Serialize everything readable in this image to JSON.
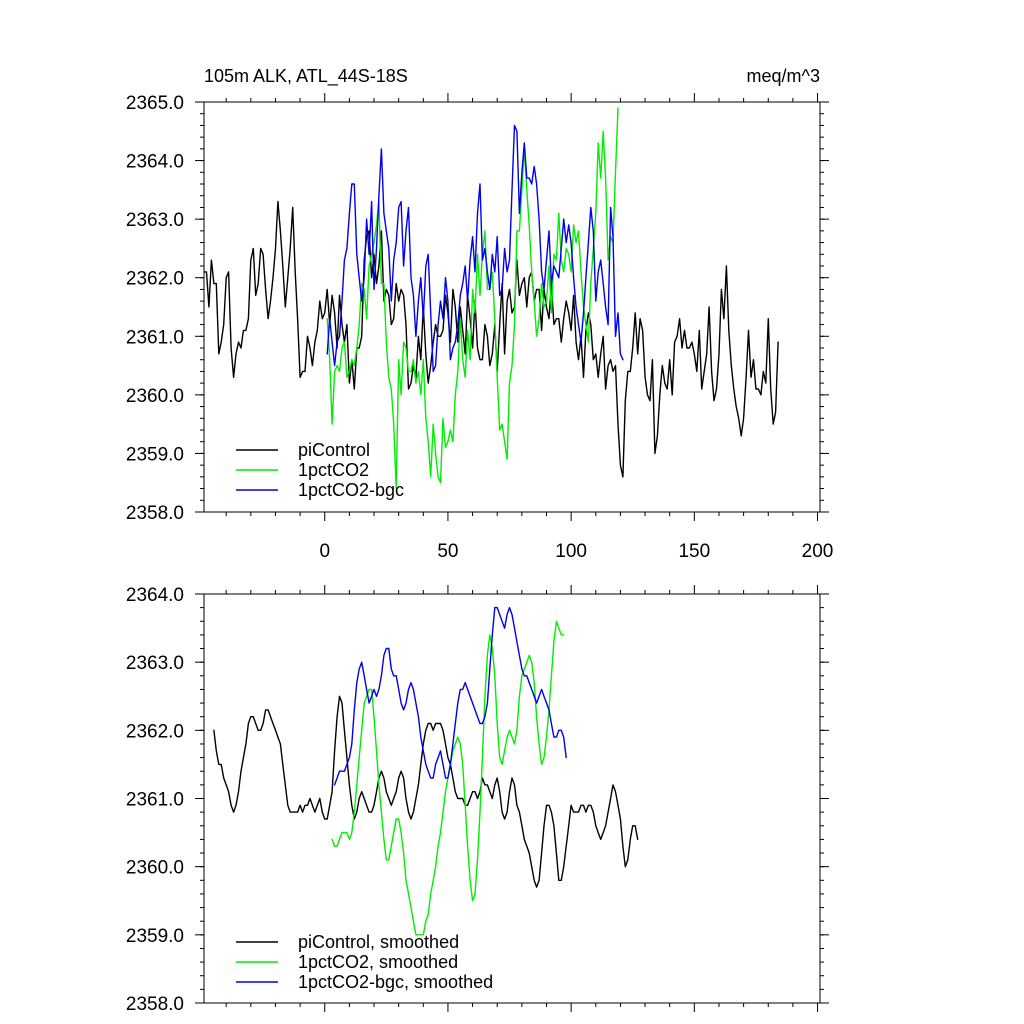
{
  "chart_data": [
    {
      "type": "line",
      "title": "105m ALK, ATL_44S-18S",
      "units": "meq/m^3",
      "xlim": [
        -49,
        201
      ],
      "ylim": [
        2358.0,
        2365.0
      ],
      "yticks": [
        2358.0,
        2359.0,
        2360.0,
        2361.0,
        2362.0,
        2363.0,
        2364.0,
        2365.0
      ],
      "ytick_labels": [
        "2358.0",
        "2359.0",
        "2360.0",
        "2361.0",
        "2362.0",
        "2363.0",
        "2364.0",
        "2365.0"
      ],
      "xticks": [
        0,
        50,
        100,
        150,
        200
      ],
      "xtick_labels": [
        "0",
        "50",
        "100",
        "150",
        "200"
      ],
      "legend_position": "bottom-left",
      "series": [
        {
          "name": "piControl",
          "color": "#000000",
          "x_start": -49,
          "values": [
            2362.1,
            2362.1,
            2361.5,
            2362.3,
            2361.9,
            2361.9,
            2360.7,
            2360.9,
            2361.2,
            2362.0,
            2362.1,
            2360.8,
            2360.3,
            2360.7,
            2360.9,
            2360.8,
            2361.1,
            2361.1,
            2361.3,
            2362.3,
            2362.5,
            2361.7,
            2361.9,
            2362.5,
            2362.4,
            2361.8,
            2361.3,
            2361.6,
            2362.0,
            2362.5,
            2363.3,
            2362.8,
            2362.2,
            2361.5,
            2362.0,
            2362.5,
            2363.2,
            2362.1,
            2361.3,
            2360.3,
            2360.4,
            2360.4,
            2361.0,
            2360.8,
            2360.5,
            2360.9,
            2361.1,
            2361.6,
            2361.3,
            2361.4,
            2361.8,
            2361.2,
            2361.7,
            2361.4,
            2360.8,
            2361.7,
            2361.2,
            2360.9,
            2361.2,
            2360.2,
            2360.6,
            2360.1,
            2360.8,
            2360.8,
            2361.0,
            2362.3,
            2362.7,
            2362.8,
            2362.0,
            2362.4,
            2361.9,
            2362.2,
            2362.8,
            2361.6,
            2361.8,
            2361.7,
            2361.2,
            2361.3,
            2361.9,
            2361.6,
            2361.8,
            2361.7,
            2361.2,
            2360.1,
            2360.2,
            2360.5,
            2360.3,
            2361.0,
            2360.6,
            2361.5,
            2360.7,
            2360.2,
            2360.5,
            2360.9,
            2361.2,
            2361.0,
            2361.0,
            2361.1,
            2361.7,
            2361.4,
            2360.9,
            2361.8,
            2361.5,
            2360.9,
            2361.5,
            2361.1,
            2360.7,
            2361.7,
            2361.3,
            2360.8,
            2361.6,
            2360.8,
            2360.6,
            2360.6,
            2361.2,
            2361.0,
            2360.5,
            2360.7,
            2361.2,
            2360.4,
            2361.2,
            2361.9,
            2360.7,
            2361.6,
            2361.8,
            2361.4,
            2361.5,
            2362.3,
            2361.7,
            2361.9,
            2362.0,
            2361.5,
            2362.0,
            2362.1,
            2361.6,
            2361.8,
            2361.8,
            2361.1,
            2361.8,
            2361.5,
            2361.3,
            2361.9,
            2361.2,
            2361.3,
            2361.3,
            2360.9,
            2361.3,
            2361.6,
            2361.4,
            2361.1,
            2361.7,
            2360.9,
            2360.6,
            2361.0,
            2360.3,
            2361.1,
            2361.4,
            2361.2,
            2360.6,
            2360.7,
            2360.3,
            2360.7,
            2361.0,
            2360.1,
            2360.5,
            2360.6,
            2360.4,
            2360.5,
            2359.5,
            2358.8,
            2358.6,
            2359.9,
            2360.4,
            2360.4,
            2360.8,
            2361.4,
            2360.7,
            2361.3,
            2361.1,
            2360.3,
            2360.0,
            2359.9,
            2360.6,
            2359.0,
            2359.3,
            2360.0,
            2360.5,
            2360.2,
            2360.1,
            2360.6,
            2360.0,
            2360.9,
            2361.0,
            2361.3,
            2360.8,
            2361.1,
            2360.8,
            2360.8,
            2360.9,
            2360.7,
            2360.4,
            2361.1,
            2360.1,
            2360.4,
            2360.7,
            2361.5,
            2360.4,
            2359.9,
            2360.1,
            2360.7,
            2361.8,
            2361.3,
            2362.2,
            2361.1,
            2360.5,
            2360.1,
            2359.8,
            2359.6,
            2359.3,
            2359.6,
            2360.3,
            2361.1,
            2360.3,
            2360.6,
            2360.1,
            2360.1,
            2360.0,
            2360.4,
            2360.2,
            2361.3,
            2360.1,
            2359.5,
            2359.7,
            2360.9
          ]
        },
        {
          "name": "1pctCO2",
          "color": "#00ee00",
          "x_start": 1,
          "values": [
            2361.3,
            2360.6,
            2359.5,
            2360.4,
            2360.5,
            2360.4,
            2360.8,
            2360.9,
            2360.3,
            2360.4,
            2360.6,
            2360.5,
            2360.8,
            2361.2,
            2361.9,
            2361.8,
            2361.3,
            2362.2,
            2362.4,
            2362.6,
            2362.9,
            2363.3,
            2361.9,
            2361.9,
            2360.9,
            2360.3,
            2360.1,
            2359.5,
            2358.4,
            2360.6,
            2360.0,
            2360.9,
            2360.8,
            2360.4,
            2360.4,
            2360.6,
            2360.2,
            2360.4,
            2360.0,
            2360.6,
            2359.6,
            2359.2,
            2358.6,
            2359.5,
            2359.0,
            2358.6,
            2358.5,
            2359.6,
            2359.1,
            2359.2,
            2359.4,
            2359.2,
            2360.0,
            2360.4,
            2361.3,
            2360.6,
            2360.3,
            2361.1,
            2360.6,
            2361.8,
            2361.4,
            2362.4,
            2361.7,
            2362.4,
            2362.8,
            2361.8,
            2361.8,
            2362.1,
            2361.3,
            2360.3,
            2359.4,
            2359.5,
            2359.2,
            2358.9,
            2360.2,
            2360.5,
            2361.2,
            2362.8,
            2362.8,
            2363.5,
            2364.2,
            2363.5,
            2362.9,
            2362.1,
            2361.6,
            2361.0,
            2361.3,
            2361.9,
            2361.5,
            2361.6,
            2362.2,
            2361.4,
            2362.4,
            2362.3,
            2363.1,
            2362.3,
            2362.1,
            2362.5,
            2362.4,
            2362.1,
            2362.9,
            2362.6,
            2362.8,
            2362.1,
            2361.5,
            2361.2,
            2360.9,
            2361.9,
            2362.5,
            2363.1,
            2364.3,
            2363.7,
            2364.5,
            2363.7,
            2362.3,
            2362.7,
            2362.6,
            2363.8,
            2364.9
          ]
        },
        {
          "name": "1pctCO2-bgc",
          "color": "#0000ee",
          "x_start": 1,
          "values": [
            2360.7,
            2361.3,
            2360.9,
            2360.5,
            2360.9,
            2361.0,
            2361.6,
            2362.3,
            2362.5,
            2363.1,
            2363.6,
            2363.6,
            2362.4,
            2362.0,
            2361.6,
            2362.0,
            2363.0,
            2362.4,
            2363.3,
            2361.8,
            2362.5,
            2363.4,
            2364.2,
            2363.1,
            2362.8,
            2362.5,
            2361.6,
            2362.3,
            2362.6,
            2363.2,
            2363.3,
            2362.2,
            2362.8,
            2363.2,
            2362.0,
            2361.7,
            2361.0,
            2361.6,
            2362.0,
            2361.3,
            2362.2,
            2362.4,
            2361.4,
            2360.4,
            2360.5,
            2361.2,
            2361.6,
            2361.3,
            2362.0,
            2361.6,
            2360.6,
            2360.8,
            2360.9,
            2361.2,
            2361.7,
            2361.9,
            2362.2,
            2361.6,
            2362.3,
            2362.7,
            2362.1,
            2363.1,
            2363.6,
            2362.3,
            2362.5,
            2362.1,
            2361.8,
            2362.4,
            2362.1,
            2362.7,
            2361.7,
            2361.8,
            2362.5,
            2362.1,
            2362.3,
            2363.5,
            2364.6,
            2364.5,
            2363.1,
            2363.8,
            2364.3,
            2363.7,
            2363.7,
            2363.6,
            2363.9,
            2363.6,
            2363.0,
            2362.1,
            2361.8,
            2362.3,
            2362.8,
            2361.9,
            2362.2,
            2362.1,
            2362.0,
            2362.5,
            2363.0,
            2362.6,
            2362.9,
            2362.6,
            2362.0,
            2361.5,
            2361.2,
            2360.9,
            2361.4,
            2362.0,
            2362.6,
            2363.2,
            2362.8,
            2361.6,
            2362.1,
            2362.3,
            2361.9,
            2361.5,
            2361.2,
            2363.2,
            2362.7,
            2361.0,
            2361.4,
            2360.7,
            2360.6
          ]
        }
      ]
    },
    {
      "type": "line",
      "title": "",
      "xlim": [
        -49,
        201
      ],
      "ylim": [
        2358.0,
        2364.0
      ],
      "yticks": [
        2358.0,
        2359.0,
        2360.0,
        2361.0,
        2362.0,
        2363.0,
        2364.0
      ],
      "ytick_labels": [
        "2358.0",
        "2359.0",
        "2360.0",
        "2361.0",
        "2362.0",
        "2363.0",
        "2364.0"
      ],
      "xticks": [
        0,
        50,
        100,
        150,
        200
      ],
      "legend_position": "bottom-left",
      "series": [
        {
          "name": "piControl, smoothed",
          "color": "#000000",
          "x_start": -45,
          "values": [
            2362.0,
            2361.7,
            2361.5,
            2361.5,
            2361.3,
            2361.2,
            2361.1,
            2360.9,
            2360.8,
            2360.9,
            2361.1,
            2361.4,
            2361.6,
            2361.8,
            2362.1,
            2362.2,
            2362.2,
            2362.1,
            2362.0,
            2362.0,
            2362.1,
            2362.3,
            2362.3,
            2362.2,
            2362.1,
            2362.0,
            2361.9,
            2361.8,
            2361.5,
            2361.2,
            2360.9,
            2360.8,
            2360.8,
            2360.8,
            2360.8,
            2360.9,
            2360.8,
            2360.9,
            2360.9,
            2361.0,
            2360.9,
            2360.8,
            2360.9,
            2361.0,
            2360.8,
            2360.7,
            2360.7,
            2360.9,
            2361.1,
            2361.7,
            2362.2,
            2362.5,
            2362.4,
            2362.0,
            2361.6,
            2361.2,
            2360.9,
            2360.7,
            2360.8,
            2361.0,
            2361.1,
            2361.0,
            2360.9,
            2360.8,
            2360.8,
            2360.9,
            2361.1,
            2361.3,
            2361.4,
            2361.3,
            2361.1,
            2361.0,
            2360.9,
            2361.0,
            2361.1,
            2361.3,
            2361.4,
            2361.3,
            2361.0,
            2360.8,
            2360.7,
            2360.8,
            2361.0,
            2361.2,
            2361.5,
            2361.8,
            2362.0,
            2362.1,
            2362.1,
            2362.0,
            2362.1,
            2362.1,
            2362.1,
            2362.0,
            2361.8,
            2361.6,
            2361.5,
            2361.3,
            2361.1,
            2361.0,
            2361.0,
            2361.0,
            2360.9,
            2360.9,
            2361.0,
            2361.1,
            2361.1,
            2361.0,
            2361.1,
            2361.3,
            2361.2,
            2361.2,
            2361.1,
            2361.0,
            2361.2,
            2361.3,
            2361.1,
            2360.8,
            2360.7,
            2360.8,
            2361.1,
            2361.3,
            2361.2,
            2360.9,
            2360.8,
            2360.6,
            2360.4,
            2360.3,
            2360.2,
            2360.0,
            2359.8,
            2359.7,
            2359.8,
            2360.2,
            2360.6,
            2360.9,
            2360.9,
            2360.8,
            2360.6,
            2360.2,
            2359.8,
            2359.8,
            2360.0,
            2360.3,
            2360.6,
            2360.9,
            2360.8,
            2360.8,
            2360.8,
            2360.9,
            2360.9,
            2360.8,
            2360.9,
            2360.9,
            2360.8,
            2360.6,
            2360.5,
            2360.4,
            2360.5,
            2360.6,
            2360.8,
            2361.0,
            2361.2,
            2361.1,
            2360.9,
            2360.7,
            2360.3,
            2360.0,
            2360.1,
            2360.4,
            2360.6,
            2360.6,
            2360.4
          ]
        },
        {
          "name": "1pctCO2, smoothed",
          "color": "#00ee00",
          "x_start": 3,
          "values": [
            2360.4,
            2360.3,
            2360.3,
            2360.4,
            2360.5,
            2360.5,
            2360.5,
            2360.4,
            2360.5,
            2360.8,
            2361.2,
            2361.6,
            2362.0,
            2362.4,
            2362.5,
            2362.6,
            2362.6,
            2362.2,
            2361.7,
            2361.2,
            2360.8,
            2360.4,
            2360.1,
            2360.1,
            2360.3,
            2360.5,
            2360.7,
            2360.7,
            2360.5,
            2360.2,
            2359.8,
            2359.6,
            2359.4,
            2359.2,
            2359.0,
            2359.0,
            2359.0,
            2359.0,
            2359.2,
            2359.3,
            2359.6,
            2359.8,
            2360.0,
            2360.3,
            2360.5,
            2360.8,
            2361.1,
            2361.3,
            2361.5,
            2361.7,
            2361.8,
            2361.9,
            2361.8,
            2361.5,
            2360.9,
            2360.3,
            2359.8,
            2359.5,
            2359.6,
            2360.1,
            2360.8,
            2361.6,
            2362.5,
            2363.1,
            2363.4,
            2363.2,
            2362.8,
            2362.1,
            2361.6,
            2361.5,
            2361.7,
            2361.9,
            2362.0,
            2361.9,
            2361.8,
            2362.0,
            2362.5,
            2362.8,
            2362.9,
            2363.0,
            2363.1,
            2363.0,
            2362.7,
            2362.2,
            2361.8,
            2361.5,
            2361.6,
            2361.9,
            2362.3,
            2362.8,
            2363.3,
            2363.6,
            2363.5,
            2363.4,
            2363.4
          ]
        },
        {
          "name": "1pctCO2-bgc, smoothed",
          "color": "#0000ee",
          "x_start": 4,
          "values": [
            2361.2,
            2361.3,
            2361.4,
            2361.4,
            2361.4,
            2361.5,
            2361.6,
            2361.8,
            2362.3,
            2362.7,
            2362.9,
            2363.0,
            2362.8,
            2362.6,
            2362.4,
            2362.5,
            2362.6,
            2362.5,
            2362.6,
            2362.8,
            2363.1,
            2363.2,
            2363.2,
            2362.9,
            2362.8,
            2362.8,
            2362.6,
            2362.4,
            2362.3,
            2362.4,
            2362.6,
            2362.7,
            2362.6,
            2362.4,
            2362.2,
            2361.9,
            2361.7,
            2361.5,
            2361.4,
            2361.3,
            2361.3,
            2361.5,
            2361.6,
            2361.7,
            2361.5,
            2361.3,
            2361.3,
            2361.5,
            2361.8,
            2362.1,
            2362.4,
            2362.6,
            2362.6,
            2362.7,
            2362.6,
            2362.5,
            2362.4,
            2362.3,
            2362.2,
            2362.1,
            2362.1,
            2362.2,
            2362.4,
            2362.9,
            2363.4,
            2363.8,
            2363.8,
            2363.7,
            2363.6,
            2363.5,
            2363.7,
            2363.8,
            2363.7,
            2363.5,
            2363.3,
            2363.1,
            2362.9,
            2362.8,
            2362.8,
            2362.7,
            2362.6,
            2362.5,
            2362.4,
            2362.5,
            2362.6,
            2362.5,
            2362.4,
            2362.3,
            2362.1,
            2361.9,
            2361.9,
            2362.0,
            2362.0,
            2361.9,
            2361.6
          ]
        }
      ]
    }
  ]
}
